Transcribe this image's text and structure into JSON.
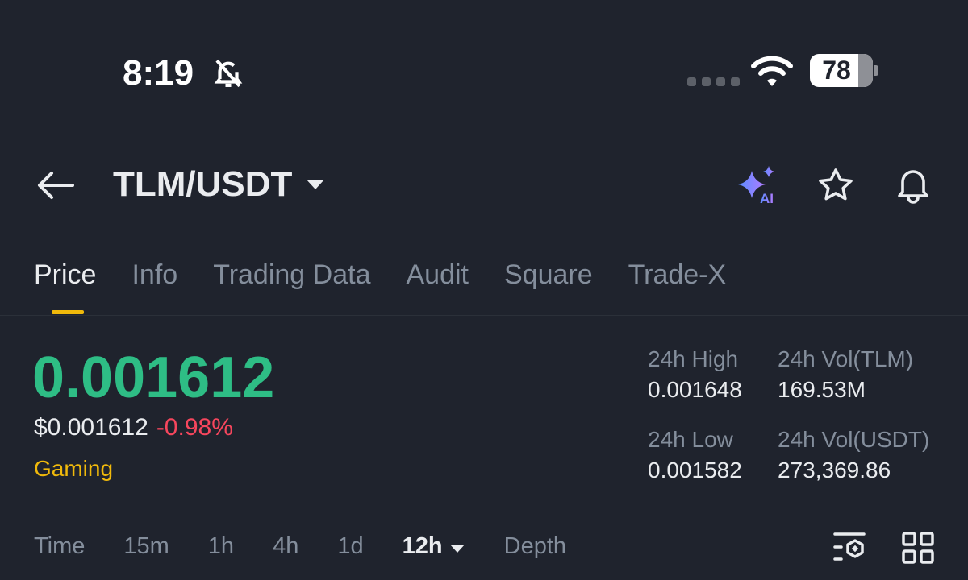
{
  "status": {
    "time": "8:19",
    "battery": "78",
    "battery_level_percent": 78
  },
  "header": {
    "pair": "TLM/USDT"
  },
  "tabs": [
    "Price",
    "Info",
    "Trading Data",
    "Audit",
    "Square",
    "Trade-X"
  ],
  "price": {
    "last": "0.001612",
    "usd": "$0.001612",
    "change": "-0.98%",
    "tag": "Gaming"
  },
  "stats": {
    "high_label": "24h High",
    "high": "0.001648",
    "vol_tlm_label": "24h Vol(TLM)",
    "vol_tlm": "169.53M",
    "low_label": "24h Low",
    "low": "0.001582",
    "vol_usdt_label": "24h Vol(USDT)",
    "vol_usdt": "273,369.86"
  },
  "intervals": [
    "Time",
    "15m",
    "1h",
    "4h",
    "1d"
  ],
  "selected_interval": "12h",
  "depth": "Depth",
  "colors": {
    "up": "#2ebd85",
    "down": "#f6465d",
    "accent": "#f0b90b",
    "bg": "#1f232d"
  }
}
